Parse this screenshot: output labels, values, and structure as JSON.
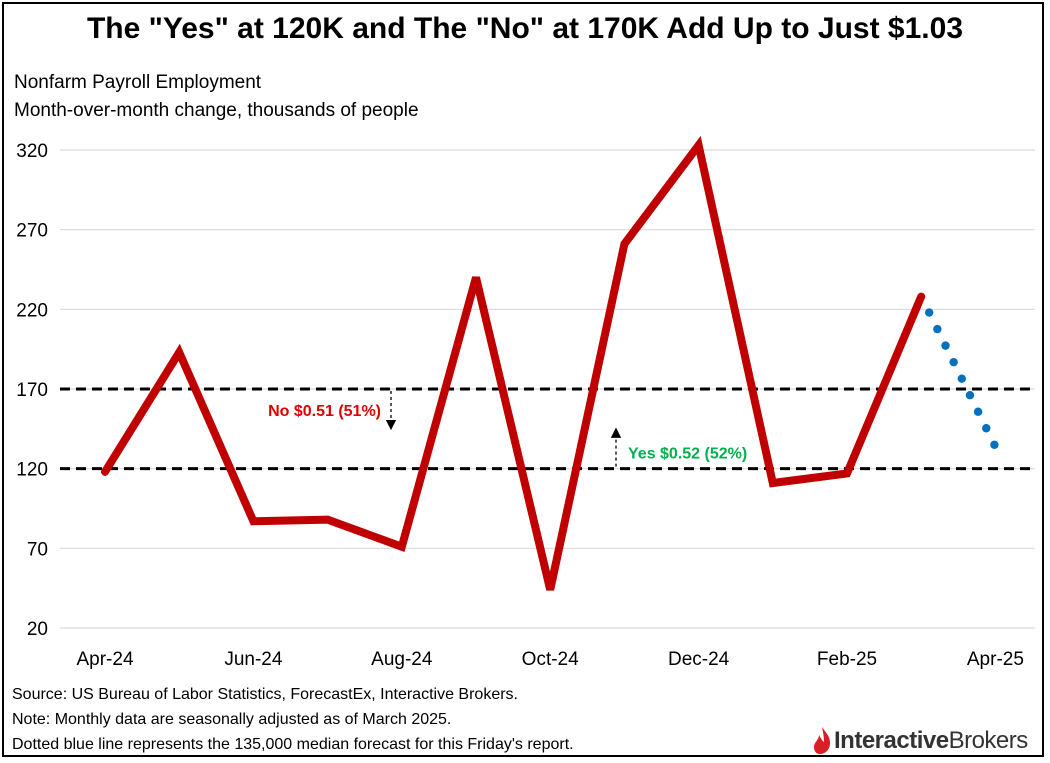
{
  "title": "The \"Yes\" at 120K and The \"No\" at 170K Add Up to Just $1.03",
  "subtitle_1": "Nonfarm Payroll Employment",
  "subtitle_2": "Month-over-month change, thousands of people",
  "footnotes": [
    "Source: US Bureau of Labor Statistics, ForecastEx, Interactive Brokers.",
    "Note: Monthly data are seasonally adjusted as of March 2025.",
    "Dotted blue line represents the 135,000 median forecast for this Friday's report."
  ],
  "logo": {
    "bold": "Interactive",
    "light": "Brokers"
  },
  "colors": {
    "actual_line": "#c00000",
    "forecast_line": "#0070c0",
    "no_label": "#e00000",
    "yes_label": "#00b050",
    "threshold_line": "#000000",
    "logo_mark": "#d81f26"
  },
  "chart_data": {
    "type": "line",
    "x_ticks": [
      "Apr-24",
      "Jun-24",
      "Aug-24",
      "Oct-24",
      "Dec-24",
      "Feb-25",
      "Apr-25"
    ],
    "y_ticks": [
      20,
      70,
      120,
      170,
      220,
      270,
      320
    ],
    "ylim": [
      20,
      320
    ],
    "grid": "horizontal",
    "series": [
      {
        "style": "solid",
        "x": [
          "Apr-24",
          "May-24",
          "Jun-24",
          "Jul-24",
          "Aug-24",
          "Sep-24",
          "Oct-24",
          "Nov-24",
          "Dec-24",
          "Jan-25",
          "Feb-25",
          "Mar-25"
        ],
        "values": [
          118,
          193,
          87,
          88,
          71,
          240,
          44,
          261,
          323,
          111,
          117,
          228
        ]
      },
      {
        "style": "dotted",
        "x": [
          "Mar-25",
          "Apr-25"
        ],
        "values": [
          228,
          135
        ]
      }
    ],
    "reference_lines": [
      {
        "value": 170,
        "style": "dashed"
      },
      {
        "value": 120,
        "style": "dashed"
      }
    ],
    "annotations": [
      {
        "text": "No $0.51 (51%)",
        "value": 170,
        "arrow": "down"
      },
      {
        "text": "Yes $0.52 (52%)",
        "value": 120,
        "arrow": "up"
      }
    ]
  }
}
